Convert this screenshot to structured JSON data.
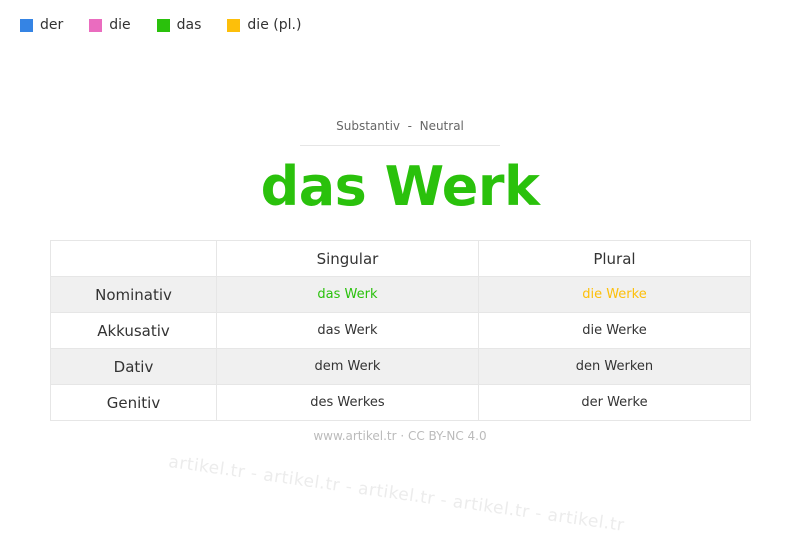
{
  "watermark": "artikel.tr - artikel.tr - artikel.tr - artikel.tr - artikel.tr",
  "legend": [
    {
      "label": "der",
      "color": "#3584e4"
    },
    {
      "label": "die",
      "color": "#ea6cbf"
    },
    {
      "label": "das",
      "color": "#2ac10c"
    },
    {
      "label": "die (pl.)",
      "color": "#fdbf0a"
    }
  ],
  "subtitle": "Substantiv  -  Neutral",
  "title": "das Werk",
  "table": {
    "headers": [
      "",
      "Singular",
      "Plural"
    ],
    "rows": [
      {
        "case": "Nominativ",
        "singular": "das Werk",
        "plural": "die Werke",
        "singular_color": "#2ac10c",
        "plural_color": "#fdbf0a"
      },
      {
        "case": "Akkusativ",
        "singular": "das Werk",
        "plural": "die Werke"
      },
      {
        "case": "Dativ",
        "singular": "dem Werk",
        "plural": "den Werken"
      },
      {
        "case": "Genitiv",
        "singular": "des Werkes",
        "plural": "der Werke"
      }
    ]
  },
  "footer": "www.artikel.tr · CC BY-NC 4.0"
}
